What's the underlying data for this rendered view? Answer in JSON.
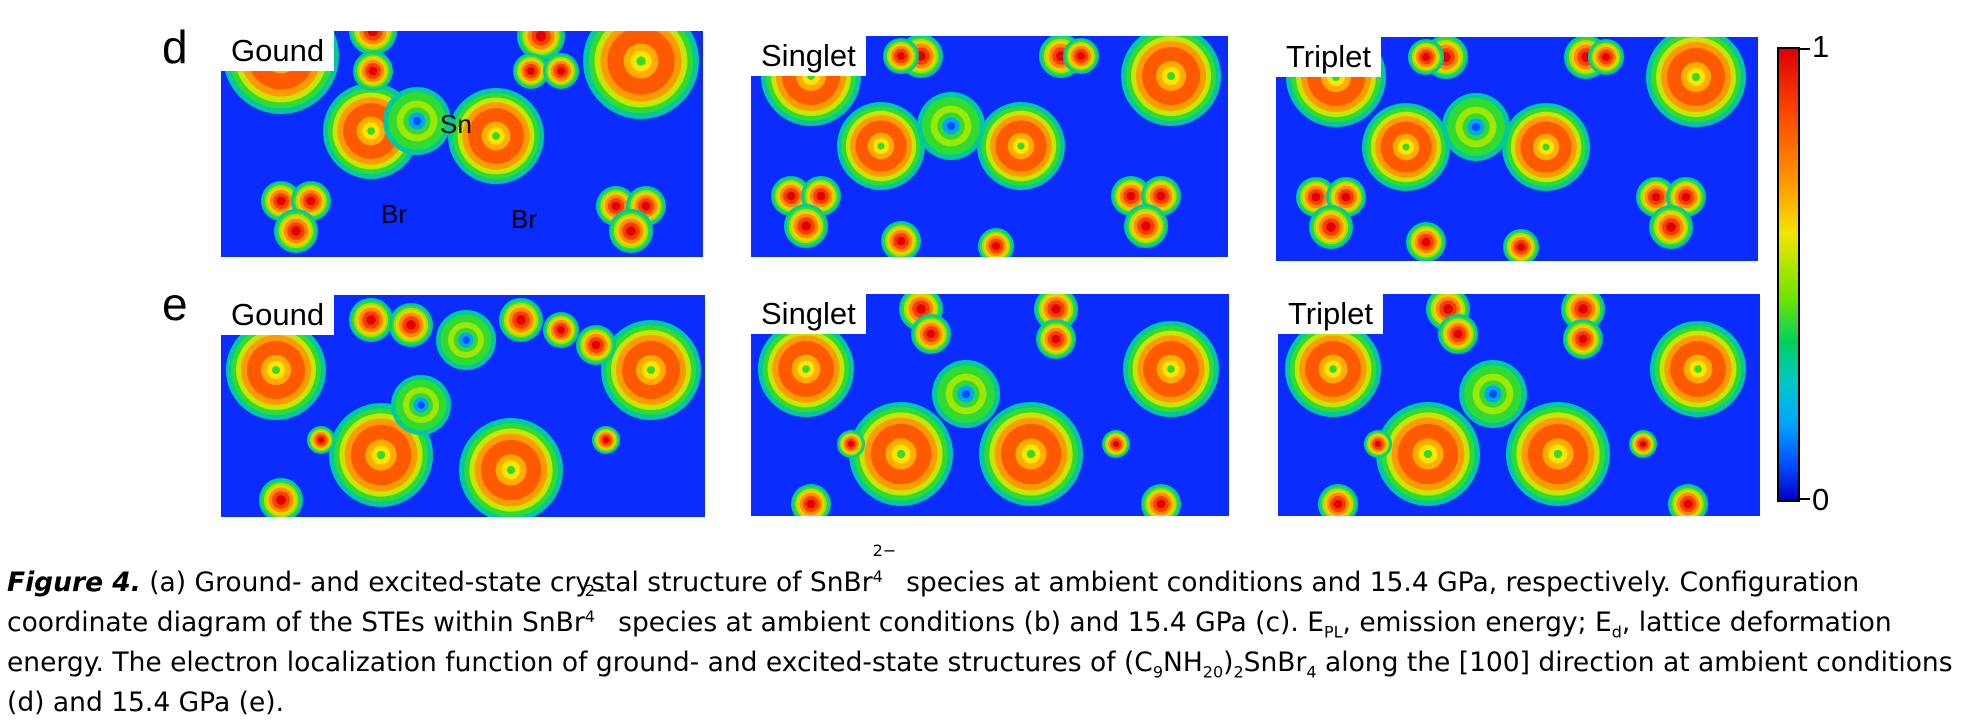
{
  "rows": [
    {
      "letter": "d",
      "panels": [
        {
          "label": "Gound",
          "atom_labels": [
            "Sn",
            "Br",
            "Br"
          ]
        },
        {
          "label": "Singlet"
        },
        {
          "label": "Triplet"
        }
      ]
    },
    {
      "letter": "e",
      "panels": [
        {
          "label": "Gound"
        },
        {
          "label": "Singlet"
        },
        {
          "label": "Triplet"
        }
      ]
    }
  ],
  "colorbar": {
    "max_label": "1",
    "min_label": "0",
    "max_value": 1,
    "min_value": 0
  },
  "caption": {
    "figure_label": "Figure 4.",
    "line1_a": " (a) Ground- and excited-state crystal structure of SnBr",
    "line1_sub": "4",
    "line1_sup": "2−",
    "line1_b": " species at ambient conditions and 15.4 GPa, respectively. Configuration",
    "line2_a": "coordinate diagram of the STEs within SnBr",
    "line2_sub": "4",
    "line2_sup": "2−",
    "line2_b": " species at ambient conditions (b) and 15.4 GPa (c). E",
    "line2_sub_pl": "PL",
    "line2_c": ", emission energy; E",
    "line2_sub_d": "d",
    "line2_d": ", lattice deformation",
    "line3_a": "energy. The electron localization function of ground- and excited-state structures of (C",
    "line3_sub1": "9",
    "line3_b": "NH",
    "line3_sub2": "20",
    "line3_c": ")",
    "line3_sub3": "2",
    "line3_d": "SnBr",
    "line3_sub4": "4",
    "line3_e": " along the [100] direction at ambient conditions",
    "line4": "(d) and 15.4 GPa (e)."
  }
}
